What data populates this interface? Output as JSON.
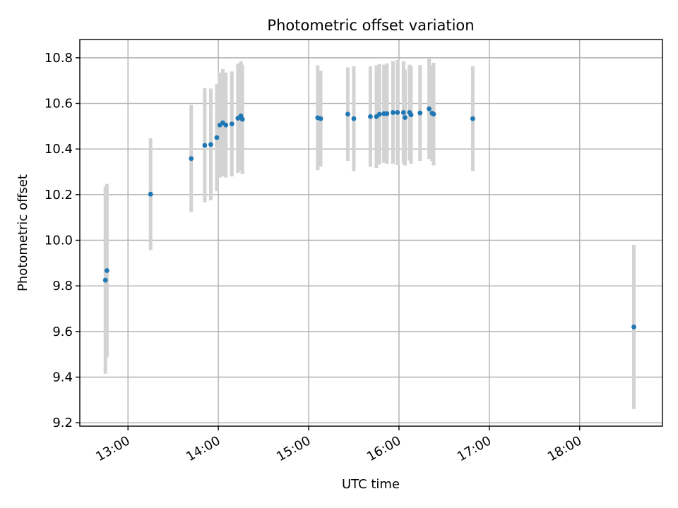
{
  "chart_data": {
    "type": "scatter",
    "title": "Photometric offset variation",
    "xlabel": "UTC time",
    "ylabel": "Photometric offset",
    "x_ticks": [
      "13:00",
      "14:00",
      "15:00",
      "16:00",
      "17:00",
      "18:00"
    ],
    "x_range": [
      "12:28",
      "18:55"
    ],
    "y_ticks": [
      "9.2",
      "9.4",
      "9.6",
      "9.8",
      "10.0",
      "10.2",
      "10.4",
      "10.6",
      "10.8"
    ],
    "ylim": [
      9.185,
      10.88
    ],
    "grid": true,
    "colors": {
      "points": "#1f77b4",
      "error_bars": "#d3d3d3"
    },
    "points": [
      {
        "t": "12:45",
        "y": 9.825,
        "err": 0.41
      },
      {
        "t": "12:46",
        "y": 9.867,
        "err": 0.38
      },
      {
        "t": "13:15",
        "y": 10.202,
        "err": 0.245
      },
      {
        "t": "13:42",
        "y": 10.358,
        "err": 0.235
      },
      {
        "t": "13:51",
        "y": 10.416,
        "err": 0.25
      },
      {
        "t": "13:55",
        "y": 10.42,
        "err": 0.245
      },
      {
        "t": "13:59",
        "y": 10.45,
        "err": 0.235
      },
      {
        "t": "14:01",
        "y": 10.505,
        "err": 0.23
      },
      {
        "t": "14:03",
        "y": 10.515,
        "err": 0.235
      },
      {
        "t": "14:05",
        "y": 10.505,
        "err": 0.23
      },
      {
        "t": "14:09",
        "y": 10.51,
        "err": 0.23
      },
      {
        "t": "14:13",
        "y": 10.535,
        "err": 0.24
      },
      {
        "t": "14:15",
        "y": 10.545,
        "err": 0.24
      },
      {
        "t": "14:16",
        "y": 10.53,
        "err": 0.24
      },
      {
        "t": "15:06",
        "y": 10.537,
        "err": 0.23
      },
      {
        "t": "15:08",
        "y": 10.533,
        "err": 0.21
      },
      {
        "t": "15:26",
        "y": 10.553,
        "err": 0.205
      },
      {
        "t": "15:30",
        "y": 10.533,
        "err": 0.23
      },
      {
        "t": "15:41",
        "y": 10.542,
        "err": 0.22
      },
      {
        "t": "15:45",
        "y": 10.542,
        "err": 0.225
      },
      {
        "t": "15:47",
        "y": 10.552,
        "err": 0.22
      },
      {
        "t": "15:50",
        "y": 10.555,
        "err": 0.215
      },
      {
        "t": "15:52",
        "y": 10.555,
        "err": 0.22
      },
      {
        "t": "15:56",
        "y": 10.56,
        "err": 0.225
      },
      {
        "t": "15:59",
        "y": 10.56,
        "err": 0.23
      },
      {
        "t": "16:03",
        "y": 10.56,
        "err": 0.225
      },
      {
        "t": "16:04",
        "y": 10.538,
        "err": 0.21
      },
      {
        "t": "16:07",
        "y": 10.56,
        "err": 0.21
      },
      {
        "t": "16:08",
        "y": 10.55,
        "err": 0.215
      },
      {
        "t": "16:14",
        "y": 10.558,
        "err": 0.21
      },
      {
        "t": "16:20",
        "y": 10.576,
        "err": 0.22
      },
      {
        "t": "16:22",
        "y": 10.557,
        "err": 0.21
      },
      {
        "t": "16:23",
        "y": 10.553,
        "err": 0.225
      },
      {
        "t": "16:49",
        "y": 10.533,
        "err": 0.23
      },
      {
        "t": "18:36",
        "y": 9.62,
        "err": 0.36
      }
    ]
  }
}
